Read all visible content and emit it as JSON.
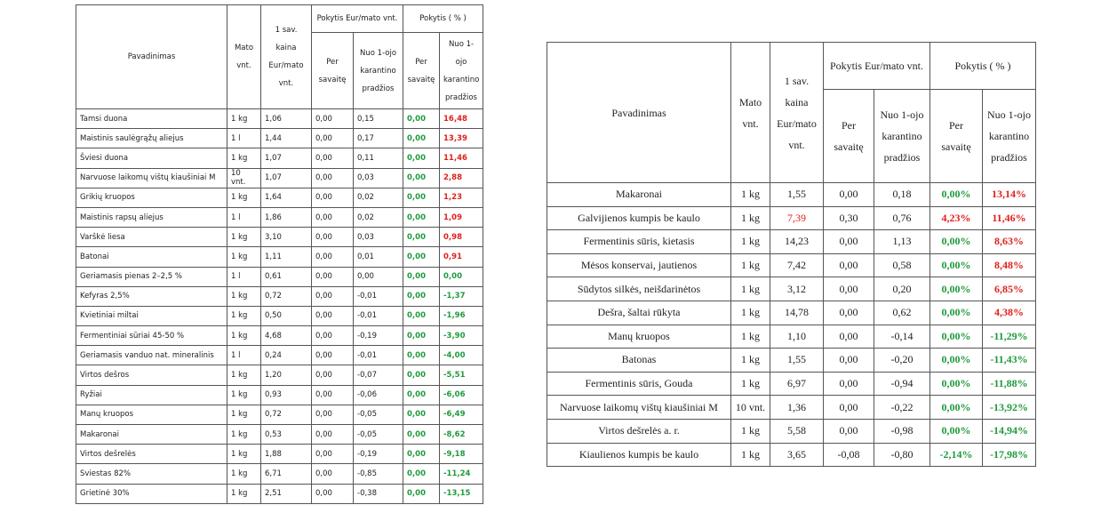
{
  "left_table": {
    "header": {
      "top": [
        "Pavadinimas",
        "Mato vnt.",
        "1 sav. kaina Eur/mato vnt.",
        "Pokytis Eur/mato vnt.",
        "Pokytis ( % )"
      ],
      "sub": [
        "Per savaitę",
        "Nuo 1-ojo karantino pradžios",
        "Per savaitę",
        "Nuo 1-ojo karantino pradžios"
      ]
    },
    "rows": [
      [
        "Tamsi duona",
        "1 kg",
        "1,06",
        "0,00",
        "0,15",
        "0,00",
        "16,48"
      ],
      [
        "Maistinis saulėgrąžų aliejus",
        "1 l",
        "1,44",
        "0,00",
        "0,17",
        "0,00",
        "13,39"
      ],
      [
        "Šviesi duona",
        "1 kg",
        "1,07",
        "0,00",
        "0,11",
        "0,00",
        "11,46"
      ],
      [
        "Narvuose laikomų vištų kiaušiniai M",
        "10 vnt.",
        "1,07",
        "0,00",
        "0,03",
        "0,00",
        "2,88"
      ],
      [
        "Grikių kruopos",
        "1 kg",
        "1,64",
        "0,00",
        "0,02",
        "0,00",
        "1,23"
      ],
      [
        "Maistinis rapsų aliejus",
        "1 l",
        "1,86",
        "0,00",
        "0,02",
        "0,00",
        "1,09"
      ],
      [
        "Varškė liesa",
        "1 kg",
        "3,10",
        "0,00",
        "0,03",
        "0,00",
        "0,98"
      ],
      [
        "Batonai",
        "1 kg",
        "1,11",
        "0,00",
        "0,01",
        "0,00",
        "0,91"
      ],
      [
        "Geriamasis pienas 2–2,5 %",
        "1 l",
        "0,61",
        "0,00",
        "0,00",
        "0,00",
        "0,00"
      ],
      [
        "Kefyras 2,5%",
        "1 kg",
        "0,72",
        "0,00",
        "-0,01",
        "0,00",
        "-1,37"
      ],
      [
        "Kvietiniai miltai",
        "1 kg",
        "0,50",
        "0,00",
        "-0,01",
        "0,00",
        "-1,96"
      ],
      [
        "Fermentiniai sūriai 45-50 %",
        "1 kg",
        "4,68",
        "0,00",
        "-0,19",
        "0,00",
        "-3,90"
      ],
      [
        "Geriamasis vanduo nat. mineralinis",
        "1 l",
        "0,24",
        "0,00",
        "-0,01",
        "0,00",
        "-4,00"
      ],
      [
        "Virtos dešros",
        "1 kg",
        "1,20",
        "0,00",
        "-0,07",
        "0,00",
        "-5,51"
      ],
      [
        "Ryžiai",
        "1 kg",
        "0,93",
        "0,00",
        "-0,06",
        "0,00",
        "-6,06"
      ],
      [
        "Manų kruopos",
        "1 kg",
        "0,72",
        "0,00",
        "-0,05",
        "0,00",
        "-6,49"
      ],
      [
        "Makaronai",
        "1 kg",
        "0,53",
        "0,00",
        "-0,05",
        "0,00",
        "-8,62"
      ],
      [
        "Virtos dešrelės",
        "1 kg",
        "1,88",
        "0,00",
        "-0,19",
        "0,00",
        "-9,18"
      ],
      [
        "Sviestas 82%",
        "1 kg",
        "6,71",
        "0,00",
        "-0,85",
        "0,00",
        "-11,24"
      ],
      [
        "Grietinė 30%",
        "1 kg",
        "2,51",
        "0,00",
        "-0,38",
        "0,00",
        "-13,15"
      ]
    ]
  },
  "right_table": {
    "header": {
      "top": [
        "Pavadinimas",
        "Mato vnt.",
        "1 sav. kaina Eur/mato vnt.",
        "Pokytis Eur/mato vnt.",
        "Pokytis ( % )"
      ],
      "sub": [
        "Per savaitę",
        "Nuo 1-ojo karantino pradžios",
        "Per savaitę",
        "Nuo 1-ojo karantino pradžios"
      ]
    },
    "rows": [
      [
        "Makaronai",
        "1 kg",
        "1,55",
        "0,00",
        "0,18",
        "0,00%",
        "13,14%"
      ],
      [
        "Galvijienos kumpis be kaulo",
        "1 kg",
        "7,39",
        "0,30",
        "0,76",
        "4,23%",
        "11,46%"
      ],
      [
        "Fermentinis sūris, kietasis",
        "1 kg",
        "14,23",
        "0,00",
        "1,13",
        "0,00%",
        "8,63%"
      ],
      [
        "Mėsos konservai, jautienos",
        "1 kg",
        "7,42",
        "0,00",
        "0,58",
        "0,00%",
        "8,48%"
      ],
      [
        "Sūdytos silkės, neišdarinėtos",
        "1 kg",
        "3,12",
        "0,00",
        "0,20",
        "0,00%",
        "6,85%"
      ],
      [
        "Dešra, šaltai rūkyta",
        "1 kg",
        "14,78",
        "0,00",
        "0,62",
        "0,00%",
        "4,38%"
      ],
      [
        "Manų kruopos",
        "1 kg",
        "1,10",
        "0,00",
        "-0,14",
        "0,00%",
        "-11,29%"
      ],
      [
        "Batonas",
        "1 kg",
        "1,55",
        "0,00",
        "-0,20",
        "0,00%",
        "-11,43%"
      ],
      [
        "Fermentinis sūris, Gouda",
        "1 kg",
        "6,97",
        "0,00",
        "-0,94",
        "0,00%",
        "-11,88%"
      ],
      [
        "Narvuose laikomų vištų kiaušiniai M",
        "10 vnt.",
        "1,36",
        "0,00",
        "-0,22",
        "0,00%",
        "-13,92%"
      ],
      [
        "Virtos dešrelės a. r.",
        "1 kg",
        "5,58",
        "0,00",
        "-0,98",
        "0,00%",
        "-14,94%"
      ],
      [
        "Kiaulienos kumpis be kaulo",
        "1 kg",
        "3,65",
        "-0,08",
        "-0,80",
        "-2,14%",
        "-17,98%"
      ]
    ]
  }
}
